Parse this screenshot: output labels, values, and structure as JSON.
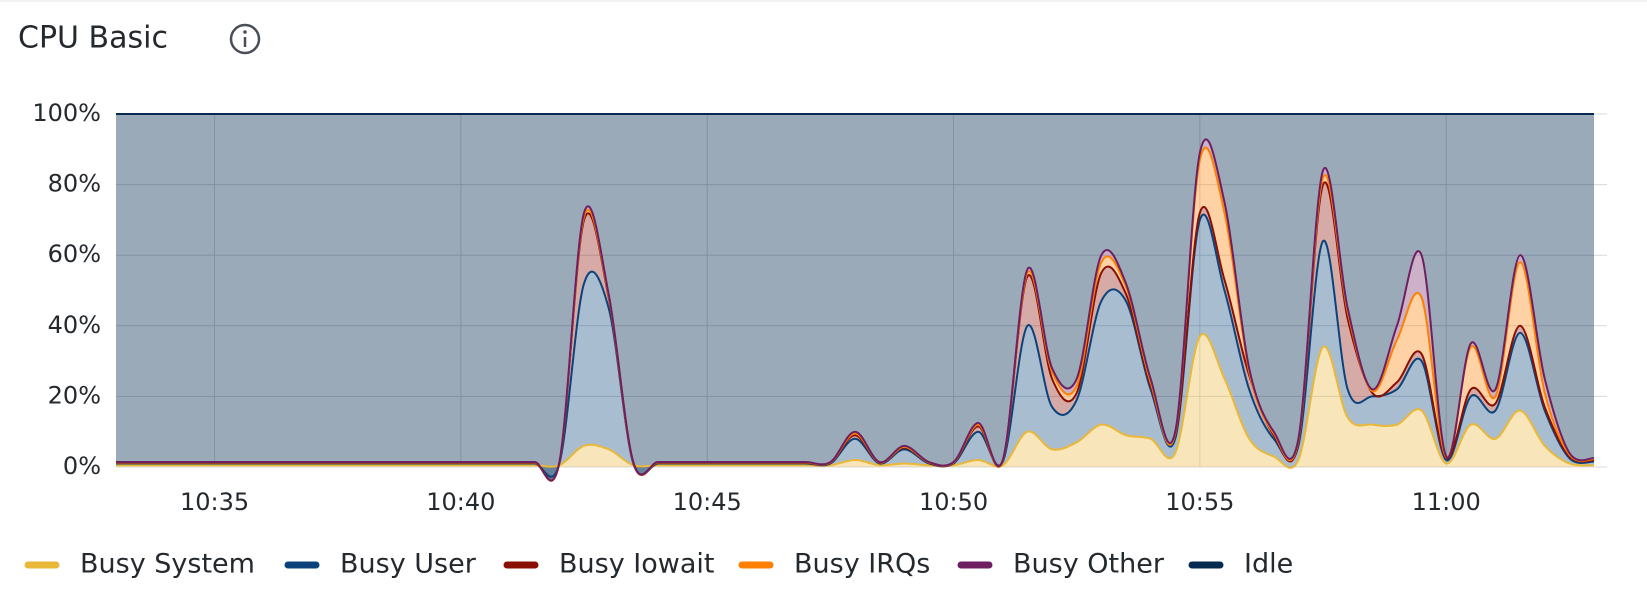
{
  "chart_data": {
    "type": "area",
    "title": "CPU Basic",
    "stacked": true,
    "grid": true,
    "legend": "bottom-left",
    "categories": [
      null,
      null,
      null,
      null,
      "10:35",
      null,
      null,
      null,
      null,
      null,
      null,
      null,
      null,
      null,
      "10:40",
      null,
      null,
      null,
      null,
      null,
      null,
      null,
      null,
      null,
      "10:45",
      null,
      null,
      null,
      null,
      null,
      null,
      null,
      null,
      null,
      "10:50",
      null,
      null,
      null,
      null,
      null,
      null,
      null,
      null,
      null,
      "10:55",
      null,
      null,
      null,
      null,
      null,
      null,
      null,
      null,
      null,
      "11:00",
      null,
      null,
      null,
      null,
      null,
      null
    ],
    "ylim": [
      0,
      100
    ],
    "yticks": [
      {
        "value": 0,
        "label": "0%"
      },
      {
        "value": 20,
        "label": "20%"
      },
      {
        "value": 40,
        "label": "40%"
      },
      {
        "value": 60,
        "label": "60%"
      },
      {
        "value": 80,
        "label": "80%"
      },
      {
        "value": 100,
        "label": "100%"
      }
    ],
    "series": [
      {
        "name": "Busy System",
        "color": "#EAB839",
        "values": [
          0.5,
          0.5,
          0.5,
          0.5,
          0.5,
          0.5,
          0.5,
          0.5,
          0.5,
          0.5,
          0.5,
          0.5,
          0.5,
          0.5,
          0.5,
          0.5,
          0.5,
          0.5,
          0.5,
          6,
          5,
          0.5,
          0.5,
          0.5,
          0.5,
          0.5,
          0.5,
          0.5,
          0.5,
          0.5,
          2,
          0.5,
          1,
          0.5,
          0.5,
          2,
          0.5,
          10,
          5,
          7,
          12,
          9,
          8,
          4,
          37,
          25,
          8,
          3,
          2,
          34,
          14,
          12,
          12,
          16,
          1,
          12,
          8,
          16,
          6,
          1,
          0.5
        ]
      },
      {
        "name": "Busy User",
        "color": "#0A437C",
        "values": [
          0.5,
          0.5,
          0.5,
          0.5,
          0.5,
          0.5,
          0.5,
          0.5,
          0.5,
          0.5,
          0.5,
          0.5,
          0.5,
          0.5,
          0.5,
          0.5,
          0.5,
          0.5,
          0.5,
          46,
          40,
          0.5,
          0.5,
          0.5,
          0.5,
          0.5,
          0.5,
          0.5,
          0.5,
          0.5,
          6,
          0.5,
          4,
          0.5,
          0.5,
          8,
          1,
          30,
          12,
          12,
          35,
          38,
          14,
          4,
          33,
          25,
          14,
          5,
          4,
          30,
          8,
          8,
          10,
          14,
          1,
          8,
          8,
          22,
          10,
          1.5,
          1
        ]
      },
      {
        "name": "Busy Iowait",
        "color": "#890F02",
        "values": [
          0.2,
          0.2,
          0.2,
          0.2,
          0.2,
          0.2,
          0.2,
          0.2,
          0.2,
          0.2,
          0.2,
          0.2,
          0.2,
          0.2,
          0.2,
          0.2,
          0.2,
          0.2,
          0.2,
          18,
          3,
          0.2,
          0.2,
          0.2,
          0.2,
          0.2,
          0.2,
          0.2,
          0.2,
          0.2,
          1,
          0.2,
          0.5,
          0.2,
          0.2,
          1.5,
          0.3,
          14,
          8,
          2,
          8,
          2,
          1,
          1,
          2,
          3,
          4,
          1,
          1,
          16,
          20,
          1,
          2,
          2,
          0.5,
          2,
          2,
          2,
          1,
          0.5,
          0.4
        ]
      },
      {
        "name": "Busy IRQs",
        "color": "#FF7F00",
        "values": [
          0.1,
          0.1,
          0.1,
          0.1,
          0.1,
          0.1,
          0.1,
          0.1,
          0.1,
          0.1,
          0.1,
          0.1,
          0.1,
          0.1,
          0.1,
          0.1,
          0.1,
          0.1,
          0.1,
          1,
          0.5,
          0.1,
          0.1,
          0.1,
          0.1,
          0.1,
          0.1,
          0.1,
          0.1,
          0.1,
          0.5,
          0.1,
          0.2,
          0.1,
          0.1,
          0.5,
          0.1,
          1,
          2,
          2,
          3,
          2,
          1,
          0.5,
          15,
          19,
          1,
          0.5,
          0.5,
          2,
          2,
          0.5,
          12,
          16,
          0.3,
          12,
          2,
          18,
          4,
          0.5,
          0.3
        ]
      },
      {
        "name": "Busy Other",
        "color": "#6D1F62",
        "values": [
          0.1,
          0.1,
          0.1,
          0.1,
          0.1,
          0.1,
          0.1,
          0.1,
          0.1,
          0.1,
          0.1,
          0.1,
          0.1,
          0.1,
          0.1,
          0.1,
          0.1,
          0.1,
          0.1,
          1,
          0.5,
          0.1,
          0.1,
          0.1,
          0.1,
          0.1,
          0.1,
          0.1,
          0.1,
          0.1,
          0.5,
          0.1,
          0.3,
          0.1,
          0.1,
          0.5,
          0.1,
          1,
          1,
          2,
          2,
          1,
          1,
          0.5,
          2,
          3,
          1,
          0.5,
          0.5,
          2,
          1,
          0.5,
          4,
          12,
          0.2,
          1,
          2,
          2,
          4,
          0.5,
          0.3
        ]
      },
      {
        "name": "Idle",
        "color": "#052B51",
        "values": [
          98.6,
          98.6,
          98.6,
          98.6,
          98.6,
          98.6,
          98.6,
          98.6,
          98.6,
          98.6,
          98.6,
          98.6,
          98.6,
          98.6,
          98.6,
          98.6,
          98.6,
          98.6,
          98.6,
          28,
          51,
          98.6,
          98.6,
          98.6,
          98.6,
          98.6,
          98.6,
          98.6,
          98.6,
          98.6,
          90,
          98.6,
          94,
          98.6,
          98.6,
          87.5,
          98,
          44,
          72,
          75,
          40,
          48,
          75,
          90,
          11,
          25,
          72,
          90,
          92,
          16,
          55,
          78,
          60,
          40,
          97,
          65,
          78,
          40,
          75,
          96,
          97.5
        ]
      }
    ]
  }
}
